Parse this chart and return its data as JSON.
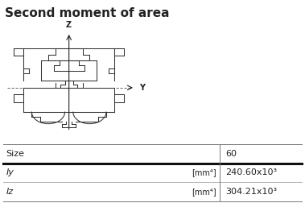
{
  "title": "Second moment of area",
  "title_fontsize": 11,
  "title_bg_color": "#cde6f5",
  "bg_color": "#ffffff",
  "table_header_label": "Size",
  "table_header_value": "60",
  "table_rows": [
    [
      "Iy",
      "[mm⁴]",
      "240.60x10³"
    ],
    [
      "Iz",
      "[mm⁴]",
      "304.21x10³"
    ]
  ],
  "axis_label_y": "Y",
  "axis_label_z": "Z",
  "line_color": "#333333",
  "axis_color": "#222222",
  "text_color": "#222222"
}
